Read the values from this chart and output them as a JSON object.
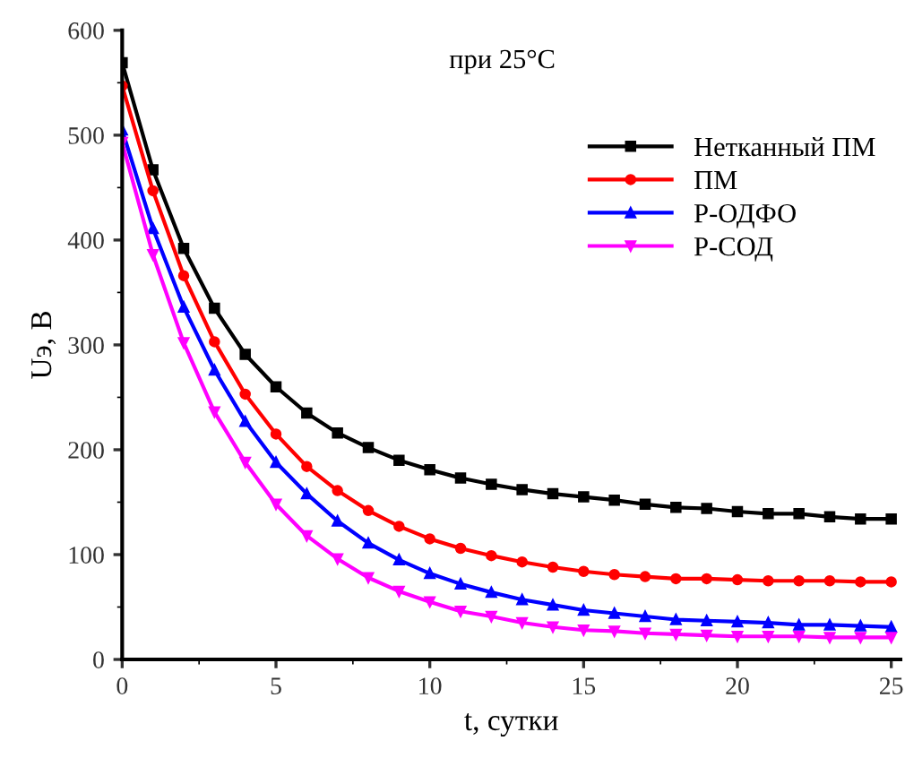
{
  "chart_data": {
    "type": "line",
    "xlabel": "t, сутки",
    "ylabel": "Uэ, В",
    "annotations": [
      "при 25°C"
    ],
    "x": [
      0,
      1,
      2,
      3,
      4,
      5,
      6,
      7,
      8,
      9,
      10,
      11,
      12,
      13,
      14,
      15,
      16,
      17,
      18,
      19,
      20,
      21,
      22,
      23,
      24,
      25
    ],
    "series": [
      {
        "name": "Нетканный ПМ",
        "color": "#000000",
        "marker": "square",
        "values": [
          569,
          467,
          392,
          335,
          291,
          260,
          235,
          216,
          202,
          190,
          181,
          173,
          167,
          162,
          158,
          155,
          152,
          148,
          145,
          144,
          141,
          139,
          139,
          136,
          134,
          134
        ]
      },
      {
        "name": "ПМ",
        "color": "#ff0000",
        "marker": "circle",
        "values": [
          547,
          447,
          366,
          303,
          253,
          215,
          184,
          161,
          142,
          127,
          115,
          106,
          99,
          93,
          88,
          84,
          81,
          79,
          77,
          77,
          76,
          75,
          75,
          75,
          74,
          74
        ]
      },
      {
        "name": "Р-ОДФО",
        "color": "#0000ff",
        "marker": "triangle",
        "values": [
          505,
          411,
          336,
          276,
          227,
          188,
          158,
          132,
          111,
          95,
          82,
          72,
          64,
          57,
          52,
          47,
          44,
          41,
          38,
          37,
          36,
          35,
          33,
          33,
          32,
          31
        ]
      },
      {
        "name": "Р-СОД",
        "color": "#ff00ff",
        "marker": "triangle_down",
        "values": [
          493,
          386,
          302,
          236,
          188,
          148,
          118,
          96,
          78,
          65,
          55,
          46,
          41,
          35,
          31,
          28,
          27,
          25,
          24,
          23,
          22,
          22,
          22,
          21,
          21,
          21
        ]
      }
    ],
    "xlim": [
      0,
      25.3
    ],
    "ylim": [
      0,
      600
    ],
    "xticks": [
      0,
      5,
      10,
      15,
      20,
      25
    ],
    "yticks": [
      0,
      100,
      200,
      300,
      400,
      500,
      600
    ],
    "grid": false,
    "legend": "top right",
    "line_style": "solid"
  }
}
